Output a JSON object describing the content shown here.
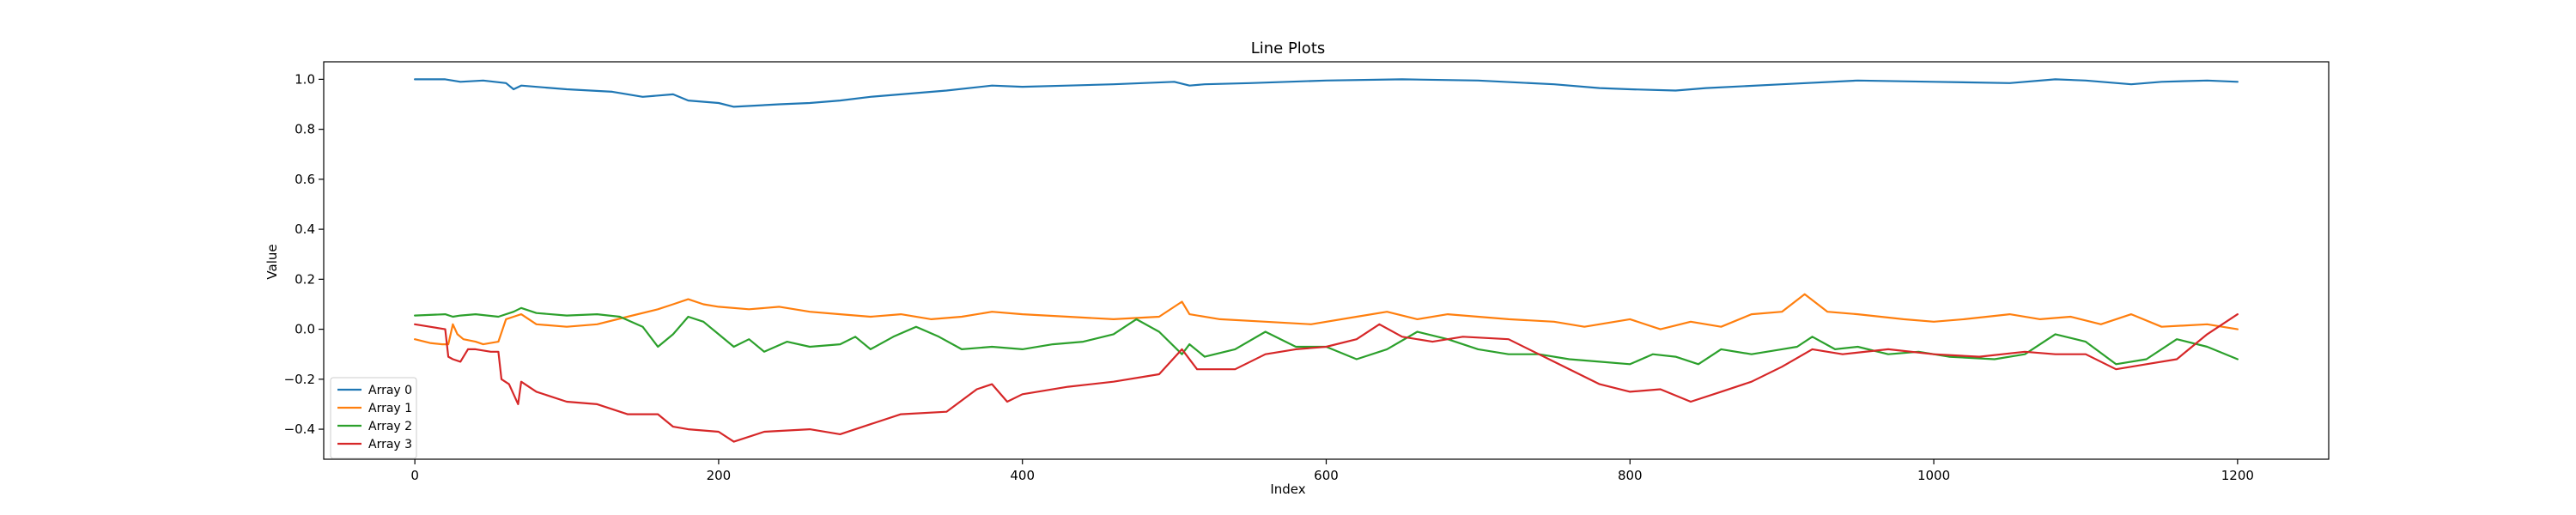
{
  "chart_data": {
    "type": "line",
    "title": "Line Plots",
    "xlabel": "Index",
    "ylabel": "Value",
    "xlim": [
      -60,
      1260
    ],
    "ylim": [
      -0.52,
      1.07
    ],
    "xticks": [
      0,
      200,
      400,
      600,
      800,
      1000,
      1200
    ],
    "yticks": [
      -0.4,
      -0.2,
      0.0,
      0.2,
      0.4,
      0.6,
      0.8,
      1.0
    ],
    "ytick_labels": [
      "−0.4",
      "−0.2",
      "0.0",
      "0.2",
      "0.4",
      "0.6",
      "0.8",
      "1.0"
    ],
    "grid": false,
    "legend_position": "lower-left",
    "series": [
      {
        "name": "Array 0",
        "color": "#1f77b4",
        "points": [
          [
            0,
            1.0
          ],
          [
            20,
            1.0
          ],
          [
            30,
            0.99
          ],
          [
            45,
            0.995
          ],
          [
            60,
            0.985
          ],
          [
            65,
            0.96
          ],
          [
            70,
            0.975
          ],
          [
            100,
            0.96
          ],
          [
            130,
            0.95
          ],
          [
            150,
            0.93
          ],
          [
            170,
            0.94
          ],
          [
            180,
            0.915
          ],
          [
            200,
            0.905
          ],
          [
            210,
            0.89
          ],
          [
            240,
            0.9
          ],
          [
            260,
            0.905
          ],
          [
            280,
            0.915
          ],
          [
            300,
            0.93
          ],
          [
            320,
            0.94
          ],
          [
            350,
            0.955
          ],
          [
            380,
            0.975
          ],
          [
            400,
            0.97
          ],
          [
            430,
            0.975
          ],
          [
            460,
            0.98
          ],
          [
            500,
            0.99
          ],
          [
            510,
            0.975
          ],
          [
            520,
            0.98
          ],
          [
            550,
            0.985
          ],
          [
            600,
            0.995
          ],
          [
            650,
            1.0
          ],
          [
            700,
            0.995
          ],
          [
            750,
            0.98
          ],
          [
            780,
            0.965
          ],
          [
            800,
            0.96
          ],
          [
            830,
            0.955
          ],
          [
            850,
            0.965
          ],
          [
            900,
            0.98
          ],
          [
            950,
            0.995
          ],
          [
            1000,
            0.99
          ],
          [
            1050,
            0.985
          ],
          [
            1080,
            1.0
          ],
          [
            1100,
            0.995
          ],
          [
            1130,
            0.98
          ],
          [
            1150,
            0.99
          ],
          [
            1180,
            0.995
          ],
          [
            1200,
            0.99
          ]
        ]
      },
      {
        "name": "Array 1",
        "color": "#ff7f0e",
        "points": [
          [
            0,
            -0.04
          ],
          [
            10,
            -0.055
          ],
          [
            18,
            -0.06
          ],
          [
            22,
            -0.06
          ],
          [
            25,
            0.02
          ],
          [
            28,
            -0.02
          ],
          [
            32,
            -0.04
          ],
          [
            40,
            -0.05
          ],
          [
            45,
            -0.06
          ],
          [
            55,
            -0.05
          ],
          [
            60,
            0.04
          ],
          [
            65,
            0.05
          ],
          [
            70,
            0.06
          ],
          [
            80,
            0.02
          ],
          [
            100,
            0.01
          ],
          [
            120,
            0.02
          ],
          [
            140,
            0.05
          ],
          [
            160,
            0.08
          ],
          [
            170,
            0.1
          ],
          [
            180,
            0.12
          ],
          [
            190,
            0.1
          ],
          [
            200,
            0.09
          ],
          [
            220,
            0.08
          ],
          [
            240,
            0.09
          ],
          [
            260,
            0.07
          ],
          [
            280,
            0.06
          ],
          [
            300,
            0.05
          ],
          [
            320,
            0.06
          ],
          [
            340,
            0.04
          ],
          [
            360,
            0.05
          ],
          [
            380,
            0.07
          ],
          [
            400,
            0.06
          ],
          [
            430,
            0.05
          ],
          [
            460,
            0.04
          ],
          [
            490,
            0.05
          ],
          [
            505,
            0.11
          ],
          [
            510,
            0.06
          ],
          [
            530,
            0.04
          ],
          [
            560,
            0.03
          ],
          [
            590,
            0.02
          ],
          [
            620,
            0.05
          ],
          [
            640,
            0.07
          ],
          [
            660,
            0.04
          ],
          [
            680,
            0.06
          ],
          [
            700,
            0.05
          ],
          [
            720,
            0.04
          ],
          [
            750,
            0.03
          ],
          [
            770,
            0.01
          ],
          [
            800,
            0.04
          ],
          [
            820,
            0.0
          ],
          [
            840,
            0.03
          ],
          [
            860,
            0.01
          ],
          [
            880,
            0.06
          ],
          [
            900,
            0.07
          ],
          [
            915,
            0.14
          ],
          [
            930,
            0.07
          ],
          [
            950,
            0.06
          ],
          [
            980,
            0.04
          ],
          [
            1000,
            0.03
          ],
          [
            1020,
            0.04
          ],
          [
            1050,
            0.06
          ],
          [
            1070,
            0.04
          ],
          [
            1090,
            0.05
          ],
          [
            1110,
            0.02
          ],
          [
            1130,
            0.06
          ],
          [
            1150,
            0.01
          ],
          [
            1180,
            0.02
          ],
          [
            1200,
            0.0
          ]
        ]
      },
      {
        "name": "Array 2",
        "color": "#2ca02c",
        "points": [
          [
            0,
            0.055
          ],
          [
            20,
            0.06
          ],
          [
            25,
            0.05
          ],
          [
            30,
            0.055
          ],
          [
            40,
            0.06
          ],
          [
            55,
            0.05
          ],
          [
            65,
            0.07
          ],
          [
            70,
            0.085
          ],
          [
            80,
            0.065
          ],
          [
            100,
            0.055
          ],
          [
            120,
            0.06
          ],
          [
            135,
            0.05
          ],
          [
            150,
            0.01
          ],
          [
            160,
            -0.07
          ],
          [
            170,
            -0.02
          ],
          [
            180,
            0.05
          ],
          [
            190,
            0.03
          ],
          [
            200,
            -0.02
          ],
          [
            210,
            -0.07
          ],
          [
            220,
            -0.04
          ],
          [
            230,
            -0.09
          ],
          [
            245,
            -0.05
          ],
          [
            260,
            -0.07
          ],
          [
            280,
            -0.06
          ],
          [
            290,
            -0.03
          ],
          [
            300,
            -0.08
          ],
          [
            315,
            -0.03
          ],
          [
            330,
            0.01
          ],
          [
            345,
            -0.03
          ],
          [
            360,
            -0.08
          ],
          [
            380,
            -0.07
          ],
          [
            400,
            -0.08
          ],
          [
            420,
            -0.06
          ],
          [
            440,
            -0.05
          ],
          [
            460,
            -0.02
          ],
          [
            475,
            0.04
          ],
          [
            490,
            -0.01
          ],
          [
            505,
            -0.1
          ],
          [
            510,
            -0.06
          ],
          [
            520,
            -0.11
          ],
          [
            540,
            -0.08
          ],
          [
            560,
            -0.01
          ],
          [
            580,
            -0.07
          ],
          [
            600,
            -0.07
          ],
          [
            620,
            -0.12
          ],
          [
            640,
            -0.08
          ],
          [
            660,
            -0.01
          ],
          [
            680,
            -0.04
          ],
          [
            700,
            -0.08
          ],
          [
            720,
            -0.1
          ],
          [
            740,
            -0.1
          ],
          [
            760,
            -0.12
          ],
          [
            780,
            -0.13
          ],
          [
            800,
            -0.14
          ],
          [
            815,
            -0.1
          ],
          [
            830,
            -0.11
          ],
          [
            845,
            -0.14
          ],
          [
            860,
            -0.08
          ],
          [
            880,
            -0.1
          ],
          [
            900,
            -0.08
          ],
          [
            910,
            -0.07
          ],
          [
            920,
            -0.03
          ],
          [
            935,
            -0.08
          ],
          [
            950,
            -0.07
          ],
          [
            970,
            -0.1
          ],
          [
            990,
            -0.09
          ],
          [
            1010,
            -0.11
          ],
          [
            1040,
            -0.12
          ],
          [
            1060,
            -0.1
          ],
          [
            1080,
            -0.02
          ],
          [
            1100,
            -0.05
          ],
          [
            1120,
            -0.14
          ],
          [
            1140,
            -0.12
          ],
          [
            1160,
            -0.04
          ],
          [
            1180,
            -0.07
          ],
          [
            1200,
            -0.12
          ]
        ]
      },
      {
        "name": "Array 3",
        "color": "#d62728",
        "points": [
          [
            0,
            0.02
          ],
          [
            10,
            0.01
          ],
          [
            20,
            0.0
          ],
          [
            22,
            -0.11
          ],
          [
            25,
            -0.12
          ],
          [
            30,
            -0.13
          ],
          [
            35,
            -0.08
          ],
          [
            40,
            -0.08
          ],
          [
            50,
            -0.09
          ],
          [
            55,
            -0.09
          ],
          [
            57,
            -0.2
          ],
          [
            62,
            -0.22
          ],
          [
            68,
            -0.3
          ],
          [
            70,
            -0.21
          ],
          [
            80,
            -0.25
          ],
          [
            100,
            -0.29
          ],
          [
            120,
            -0.3
          ],
          [
            140,
            -0.34
          ],
          [
            160,
            -0.34
          ],
          [
            170,
            -0.39
          ],
          [
            180,
            -0.4
          ],
          [
            200,
            -0.41
          ],
          [
            210,
            -0.45
          ],
          [
            230,
            -0.41
          ],
          [
            260,
            -0.4
          ],
          [
            280,
            -0.42
          ],
          [
            300,
            -0.38
          ],
          [
            320,
            -0.34
          ],
          [
            350,
            -0.33
          ],
          [
            370,
            -0.24
          ],
          [
            380,
            -0.22
          ],
          [
            390,
            -0.29
          ],
          [
            400,
            -0.26
          ],
          [
            430,
            -0.23
          ],
          [
            460,
            -0.21
          ],
          [
            490,
            -0.18
          ],
          [
            505,
            -0.08
          ],
          [
            515,
            -0.16
          ],
          [
            540,
            -0.16
          ],
          [
            560,
            -0.1
          ],
          [
            580,
            -0.08
          ],
          [
            600,
            -0.07
          ],
          [
            620,
            -0.04
          ],
          [
            635,
            0.02
          ],
          [
            650,
            -0.03
          ],
          [
            670,
            -0.05
          ],
          [
            690,
            -0.03
          ],
          [
            720,
            -0.04
          ],
          [
            750,
            -0.13
          ],
          [
            780,
            -0.22
          ],
          [
            800,
            -0.25
          ],
          [
            820,
            -0.24
          ],
          [
            840,
            -0.29
          ],
          [
            860,
            -0.25
          ],
          [
            880,
            -0.21
          ],
          [
            900,
            -0.15
          ],
          [
            920,
            -0.08
          ],
          [
            940,
            -0.1
          ],
          [
            970,
            -0.08
          ],
          [
            1000,
            -0.1
          ],
          [
            1030,
            -0.11
          ],
          [
            1060,
            -0.09
          ],
          [
            1080,
            -0.1
          ],
          [
            1100,
            -0.1
          ],
          [
            1120,
            -0.16
          ],
          [
            1140,
            -0.14
          ],
          [
            1160,
            -0.12
          ],
          [
            1180,
            -0.02
          ],
          [
            1200,
            0.06
          ]
        ]
      }
    ]
  }
}
